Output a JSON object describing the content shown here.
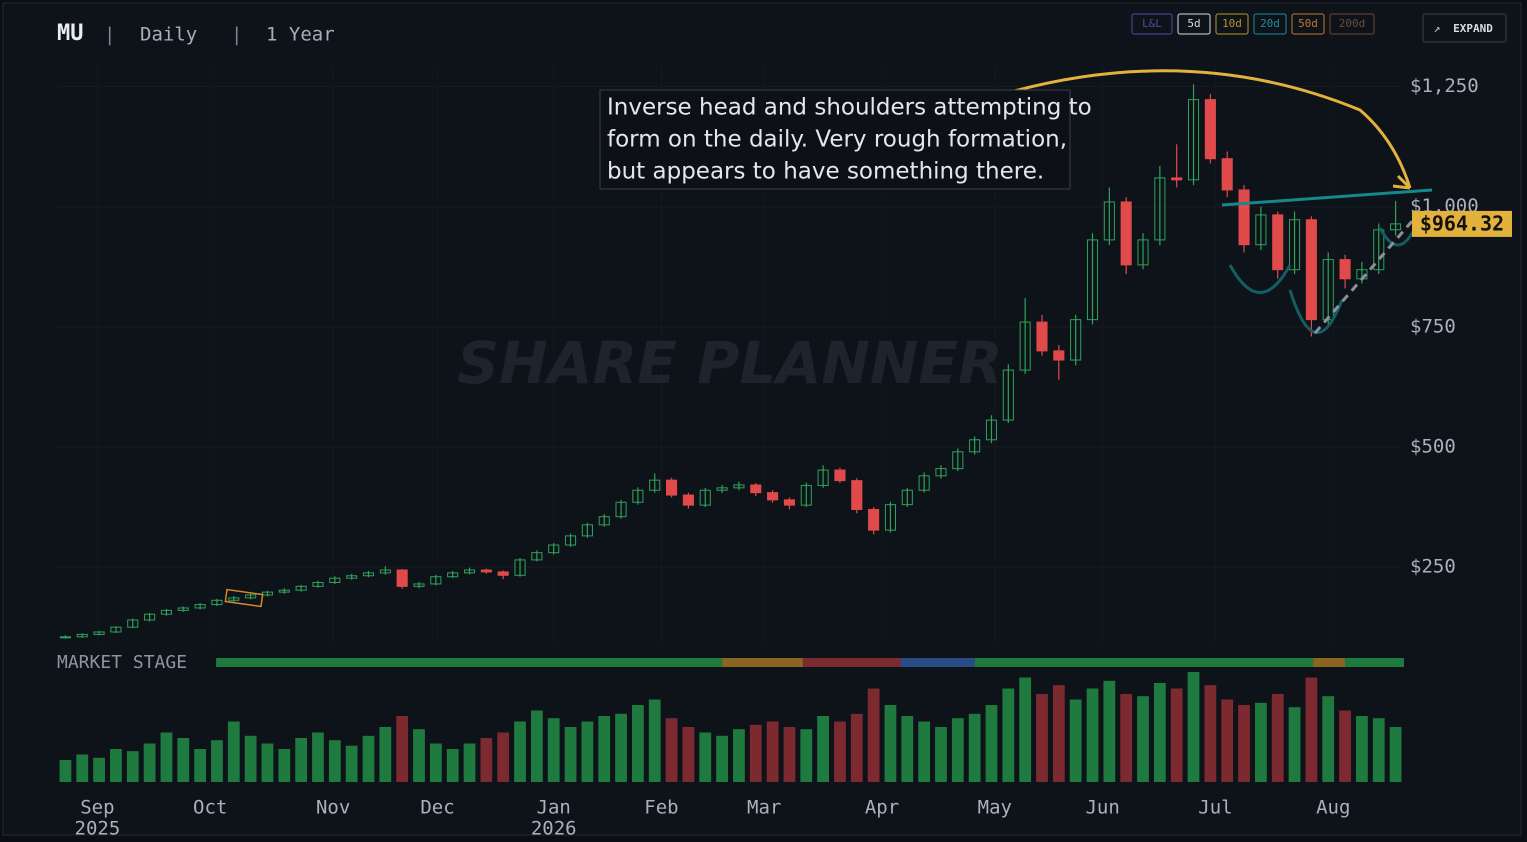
{
  "header": {
    "symbol": "MU",
    "separator": "|",
    "interval": "Daily",
    "range": "1 Year"
  },
  "controls": [
    "L&L",
    "5d",
    "10d",
    "20d",
    "50d",
    "200d"
  ],
  "expand": "EXPAND",
  "chart_data": {
    "type": "candlestick",
    "watermark": "SHARE PLANNER",
    "annotation": [
      "Inverse head and shoulders attempting to",
      "form on the daily. Very rough formation,",
      "but appears to have something there."
    ],
    "up_color": "#2fa35a",
    "down_color": "#e04a4a",
    "open": [
      103,
      105,
      110,
      115,
      125,
      140,
      152,
      160,
      165,
      172,
      181,
      186,
      192,
      198,
      202,
      210,
      218,
      227,
      232,
      238,
      244,
      210,
      215,
      230,
      238,
      244,
      240,
      233,
      265,
      280,
      296,
      315,
      338,
      355,
      385,
      410,
      431,
      400,
      379,
      410,
      415,
      421,
      405,
      390,
      379,
      420,
      452,
      430,
      370,
      327,
      380,
      410,
      440,
      455,
      490,
      515,
      556,
      660,
      760,
      700,
      681,
      765,
      931,
      1010,
      879,
      931,
      1060,
      1056,
      1223,
      1100,
      1035,
      921,
      983,
      869,
      973,
      765,
      890,
      850,
      869,
      952
    ],
    "high": [
      108,
      112,
      117,
      127,
      143,
      155,
      163,
      168,
      175,
      184,
      190,
      195,
      201,
      206,
      213,
      222,
      231,
      236,
      242,
      252,
      246,
      219,
      234,
      242,
      249,
      247,
      243,
      269,
      285,
      300,
      320,
      342,
      360,
      390,
      416,
      445,
      436,
      405,
      415,
      421,
      428,
      425,
      410,
      395,
      426,
      462,
      457,
      435,
      375,
      386,
      415,
      447,
      462,
      497,
      522,
      566,
      672,
      810,
      775,
      712,
      775,
      945,
      1040,
      1020,
      945,
      1085,
      1130,
      1255,
      1235,
      1115,
      1045,
      1000,
      990,
      990,
      980,
      905,
      900,
      885,
      965,
      1012
    ],
    "low": [
      101,
      103,
      108,
      113,
      123,
      137,
      149,
      157,
      162,
      169,
      178,
      183,
      189,
      194,
      199,
      207,
      215,
      224,
      229,
      234,
      205,
      206,
      212,
      227,
      235,
      236,
      225,
      230,
      262,
      276,
      292,
      311,
      334,
      351,
      380,
      405,
      395,
      372,
      375,
      404,
      410,
      398,
      384,
      370,
      375,
      415,
      425,
      362,
      318,
      322,
      375,
      405,
      434,
      450,
      484,
      508,
      550,
      652,
      690,
      640,
      670,
      755,
      920,
      860,
      870,
      920,
      1040,
      1045,
      1090,
      1020,
      905,
      910,
      850,
      860,
      730,
      755,
      830,
      840,
      860,
      940
    ],
    "close": [
      105,
      110,
      115,
      125,
      140,
      152,
      160,
      165,
      172,
      181,
      186,
      192,
      198,
      202,
      210,
      218,
      227,
      232,
      238,
      244,
      210,
      215,
      230,
      238,
      244,
      240,
      233,
      265,
      280,
      296,
      315,
      338,
      355,
      385,
      410,
      431,
      400,
      379,
      410,
      415,
      421,
      405,
      390,
      379,
      420,
      452,
      430,
      370,
      327,
      380,
      410,
      440,
      455,
      490,
      515,
      556,
      660,
      760,
      700,
      681,
      765,
      931,
      1010,
      879,
      931,
      1060,
      1056,
      1223,
      1100,
      1035,
      921,
      983,
      869,
      973,
      765,
      890,
      850,
      869,
      952,
      964.32
    ],
    "volume": [
      20,
      25,
      22,
      30,
      28,
      35,
      45,
      40,
      30,
      38,
      55,
      42,
      35,
      30,
      40,
      45,
      38,
      33,
      42,
      50,
      60,
      48,
      35,
      30,
      35,
      40,
      45,
      55,
      65,
      58,
      50,
      55,
      60,
      62,
      70,
      75,
      58,
      50,
      45,
      42,
      48,
      52,
      55,
      50,
      48,
      60,
      55,
      62,
      85,
      70,
      60,
      55,
      50,
      58,
      62,
      70,
      85,
      95,
      80,
      88,
      75,
      85,
      92,
      80,
      78,
      90,
      85,
      100,
      88,
      75,
      70,
      72,
      80,
      68,
      95,
      78,
      65,
      60,
      58,
      50
    ],
    "last_price": {
      "value": 964.32,
      "label": "$964.32"
    },
    "xlim": [
      0,
      80
    ],
    "xticks": [
      {
        "value": 2.4,
        "label": "Sep"
      },
      {
        "value": 9.1,
        "label": "Oct"
      },
      {
        "value": 16.4,
        "label": "Nov"
      },
      {
        "value": 22.6,
        "label": "Dec"
      },
      {
        "value": 29.5,
        "label": "Jan"
      },
      {
        "value": 35.9,
        "label": "Feb"
      },
      {
        "value": 42,
        "label": "Mar"
      },
      {
        "value": 49,
        "label": "Apr"
      },
      {
        "value": 55.7,
        "label": "May"
      },
      {
        "value": 62.1,
        "label": "Jun"
      },
      {
        "value": 68.8,
        "label": "Jul"
      },
      {
        "value": 75.8,
        "label": "Aug"
      }
    ],
    "year_labels": [
      {
        "value": 2.4,
        "label": "2025"
      },
      {
        "value": 29.5,
        "label": "2026"
      }
    ],
    "ylim": [
      90,
      1295
    ],
    "yticks": [
      {
        "value": 250,
        "label": "$250"
      },
      {
        "value": 500,
        "label": "$500"
      },
      {
        "value": 750,
        "label": "$750"
      },
      {
        "value": 1000,
        "label": "$1,000"
      },
      {
        "value": 1250,
        "label": "$1,250"
      }
    ],
    "grid": true,
    "market_stage_label": "MARKET STAGE",
    "market_stage": [
      {
        "start": 9.45,
        "end": 39.5,
        "color": "#1f7a3f"
      },
      {
        "start": 39.5,
        "end": 44.3,
        "color": "#8a6620"
      },
      {
        "start": 44.3,
        "end": 50.1,
        "color": "#7c2a30"
      },
      {
        "start": 50.1,
        "end": 54.5,
        "color": "#2a4c86"
      },
      {
        "start": 54.5,
        "end": 74.6,
        "color": "#1f7a3f"
      },
      {
        "start": 74.6,
        "end": 76.5,
        "color": "#8a6620"
      },
      {
        "start": 76.5,
        "end": 80,
        "color": "#1f7a3f"
      }
    ]
  }
}
